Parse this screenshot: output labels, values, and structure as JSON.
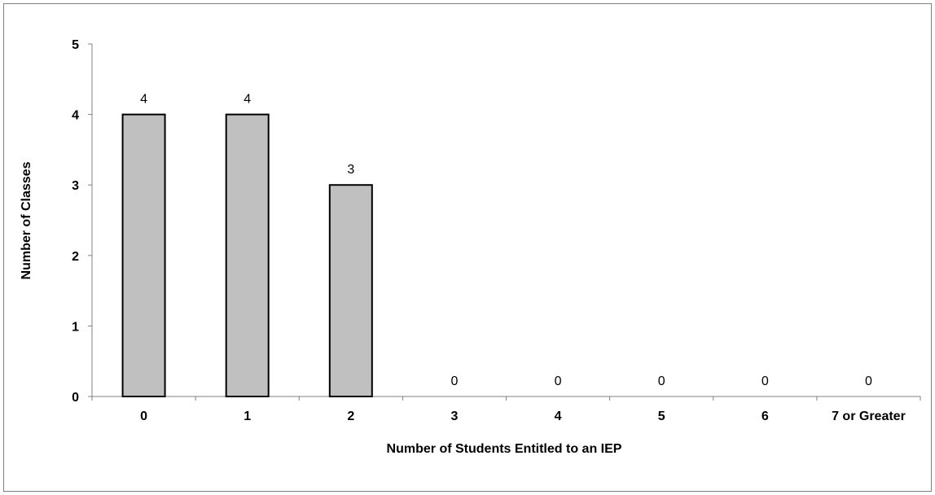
{
  "chart_data": {
    "type": "bar",
    "categories": [
      "0",
      "1",
      "2",
      "3",
      "4",
      "5",
      "6",
      "7 or Greater"
    ],
    "values": [
      4,
      4,
      3,
      0,
      0,
      0,
      0,
      0
    ],
    "data_labels": [
      "4",
      "4",
      "3",
      "0",
      "0",
      "0",
      "0",
      "0"
    ],
    "title": "",
    "xlabel": "Number of Students Entitled to an IEP",
    "ylabel": "Number of Classes",
    "ylim": [
      0,
      5
    ],
    "yticks": [
      "0",
      "1",
      "2",
      "3",
      "4",
      "5"
    ],
    "grid": false,
    "legend": "none",
    "bar_color": "#c0c0c0",
    "bar_edge_color": "#000000"
  }
}
